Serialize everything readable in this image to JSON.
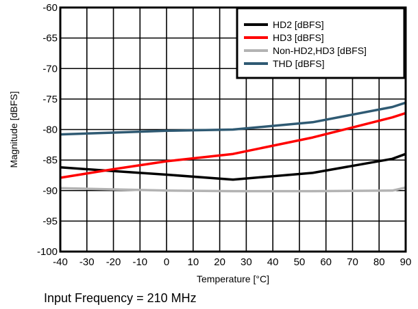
{
  "chart_data": {
    "type": "line",
    "xlabel": "Temperature [°C]",
    "ylabel": "Magnitude [dBFS]",
    "xlim": [
      -40,
      90
    ],
    "ylim": [
      -100,
      -60
    ],
    "x_ticks": [
      "-40",
      "-30",
      "-20",
      "-10",
      "0",
      "10",
      "20",
      "30",
      "40",
      "50",
      "60",
      "70",
      "80",
      "90"
    ],
    "y_ticks": [
      "-60",
      "-65",
      "-70",
      "-75",
      "-80",
      "-85",
      "-90",
      "-95",
      "-100"
    ],
    "grid": true,
    "legend_position": "top-right",
    "series": [
      {
        "name": "HD2 [dBFS]",
        "color": "#000000",
        "x": [
          -40,
          -20,
          0,
          25,
          55,
          85,
          90
        ],
        "y": [
          -86.2,
          -86.8,
          -87.4,
          -88.2,
          -87.1,
          -84.8,
          -84.0
        ]
      },
      {
        "name": "HD3 [dBFS]",
        "color": "#ff0000",
        "x": [
          -40,
          -20,
          0,
          25,
          55,
          85,
          90
        ],
        "y": [
          -87.9,
          -86.5,
          -85.2,
          -84.0,
          -81.3,
          -78.0,
          -77.3
        ]
      },
      {
        "name": "Non-HD2,HD3 [dBFS]",
        "color": "#b3b3b3",
        "x": [
          -40,
          -20,
          0,
          25,
          55,
          85,
          90
        ],
        "y": [
          -89.6,
          -89.8,
          -90.0,
          -90.1,
          -90.1,
          -90.0,
          -89.5
        ]
      },
      {
        "name": "THD [dBFS]",
        "color": "#2f5a73",
        "x": [
          -40,
          -20,
          0,
          25,
          55,
          85,
          90
        ],
        "y": [
          -80.8,
          -80.5,
          -80.2,
          -80.0,
          -78.8,
          -76.3,
          -75.6
        ]
      }
    ]
  },
  "footnote": "Input Frequency = 210 MHz"
}
